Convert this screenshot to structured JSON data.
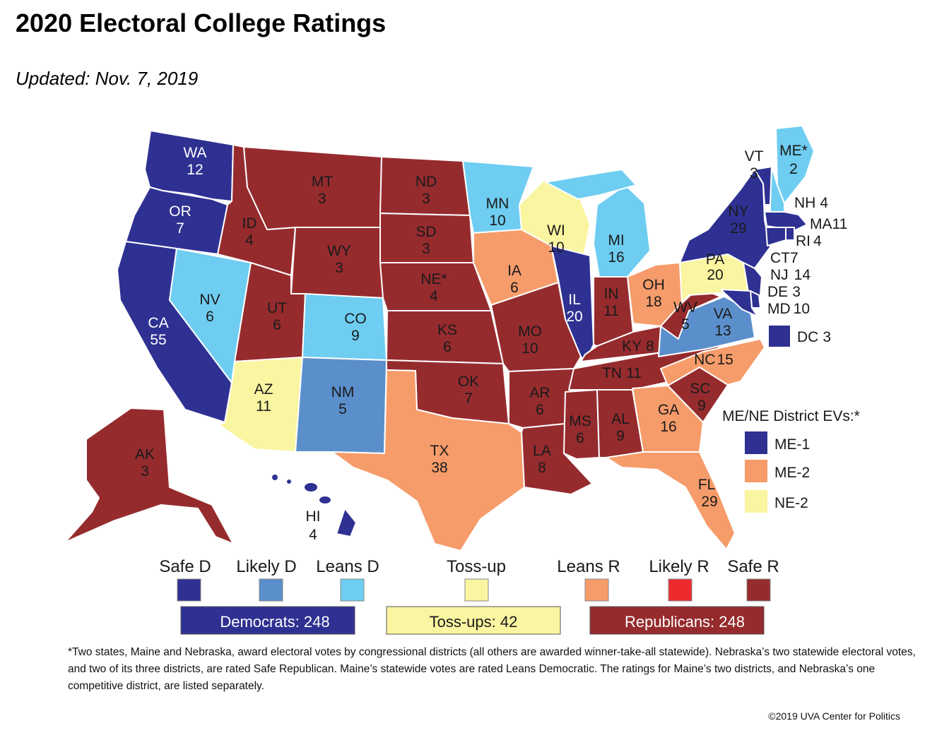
{
  "header": {
    "title": "2020 Electoral College Ratings",
    "updated": "Updated: Nov. 7, 2019"
  },
  "colors": {
    "safe_d": "#2E3192",
    "likely_d": "#5B8FCB",
    "leans_d": "#6ECDF1",
    "toss_up": "#FAF5A0",
    "leans_r": "#F69C6A",
    "likely_r": "#ED2B2F",
    "safe_r": "#962B2E"
  },
  "states": [
    {
      "abbr": "WA",
      "ev": "12",
      "rating": "safe_d"
    },
    {
      "abbr": "OR",
      "ev": "7",
      "rating": "safe_d"
    },
    {
      "abbr": "CA",
      "ev": "55",
      "rating": "safe_d"
    },
    {
      "abbr": "NV",
      "ev": "6",
      "rating": "leans_d"
    },
    {
      "abbr": "ID",
      "ev": "4",
      "rating": "safe_r"
    },
    {
      "abbr": "MT",
      "ev": "3",
      "rating": "safe_r"
    },
    {
      "abbr": "WY",
      "ev": "3",
      "rating": "safe_r"
    },
    {
      "abbr": "UT",
      "ev": "6",
      "rating": "safe_r"
    },
    {
      "abbr": "CO",
      "ev": "9",
      "rating": "leans_d"
    },
    {
      "abbr": "AZ",
      "ev": "11",
      "rating": "toss_up"
    },
    {
      "abbr": "NM",
      "ev": "5",
      "rating": "likely_d"
    },
    {
      "abbr": "ND",
      "ev": "3",
      "rating": "safe_r"
    },
    {
      "abbr": "SD",
      "ev": "3",
      "rating": "safe_r"
    },
    {
      "abbr": "NE*",
      "ev": "4",
      "rating": "safe_r"
    },
    {
      "abbr": "KS",
      "ev": "6",
      "rating": "safe_r"
    },
    {
      "abbr": "OK",
      "ev": "7",
      "rating": "safe_r"
    },
    {
      "abbr": "TX",
      "ev": "38",
      "rating": "leans_r"
    },
    {
      "abbr": "MN",
      "ev": "10",
      "rating": "leans_d"
    },
    {
      "abbr": "IA",
      "ev": "6",
      "rating": "leans_r"
    },
    {
      "abbr": "MO",
      "ev": "10",
      "rating": "safe_r"
    },
    {
      "abbr": "AR",
      "ev": "6",
      "rating": "safe_r"
    },
    {
      "abbr": "LA",
      "ev": "8",
      "rating": "safe_r"
    },
    {
      "abbr": "WI",
      "ev": "10",
      "rating": "toss_up"
    },
    {
      "abbr": "IL",
      "ev": "20",
      "rating": "safe_d"
    },
    {
      "abbr": "MI",
      "ev": "16",
      "rating": "leans_d"
    },
    {
      "abbr": "IN",
      "ev": "11",
      "rating": "safe_r"
    },
    {
      "abbr": "OH",
      "ev": "18",
      "rating": "leans_r"
    },
    {
      "abbr": "KY",
      "ev": "8",
      "rating": "safe_r"
    },
    {
      "abbr": "TN",
      "ev": "11",
      "rating": "safe_r"
    },
    {
      "abbr": "MS",
      "ev": "6",
      "rating": "safe_r"
    },
    {
      "abbr": "AL",
      "ev": "9",
      "rating": "safe_r"
    },
    {
      "abbr": "GA",
      "ev": "16",
      "rating": "leans_r"
    },
    {
      "abbr": "FL",
      "ev": "29",
      "rating": "leans_r"
    },
    {
      "abbr": "SC",
      "ev": "9",
      "rating": "safe_r"
    },
    {
      "abbr": "NC",
      "ev": "15",
      "rating": "leans_r"
    },
    {
      "abbr": "VA",
      "ev": "13",
      "rating": "likely_d"
    },
    {
      "abbr": "WV",
      "ev": "5",
      "rating": "safe_r"
    },
    {
      "abbr": "PA",
      "ev": "20",
      "rating": "toss_up"
    },
    {
      "abbr": "NY",
      "ev": "29",
      "rating": "safe_d"
    },
    {
      "abbr": "VT",
      "ev": "3",
      "rating": "safe_d"
    },
    {
      "abbr": "ME*",
      "ev": "2",
      "rating": "leans_d"
    },
    {
      "abbr": "NH",
      "ev": "4",
      "rating": "leans_d"
    },
    {
      "abbr": "MA",
      "ev": "11",
      "rating": "safe_d"
    },
    {
      "abbr": "RI",
      "ev": "4",
      "rating": "safe_d"
    },
    {
      "abbr": "CT",
      "ev": "7",
      "rating": "safe_d"
    },
    {
      "abbr": "NJ",
      "ev": "14",
      "rating": "safe_d"
    },
    {
      "abbr": "DE",
      "ev": "3",
      "rating": "safe_d"
    },
    {
      "abbr": "MD",
      "ev": "10",
      "rating": "safe_d"
    },
    {
      "abbr": "DC",
      "ev": "3",
      "rating": "safe_d"
    },
    {
      "abbr": "AK",
      "ev": "3",
      "rating": "safe_r"
    },
    {
      "abbr": "HI",
      "ev": "4",
      "rating": "safe_d"
    }
  ],
  "district_legend": {
    "title": "ME/NE District EVs:*",
    "items": [
      {
        "label": "ME-1",
        "rating": "safe_d"
      },
      {
        "label": "ME-2",
        "rating": "leans_r"
      },
      {
        "label": "NE-2",
        "rating": "toss_up"
      }
    ]
  },
  "key": [
    {
      "label": "Safe D",
      "rating": "safe_d"
    },
    {
      "label": "Likely D",
      "rating": "likely_d"
    },
    {
      "label": "Leans D",
      "rating": "leans_d"
    },
    {
      "label": "Toss-up",
      "rating": "toss_up"
    },
    {
      "label": "Leans R",
      "rating": "leans_r"
    },
    {
      "label": "Likely R",
      "rating": "likely_r"
    },
    {
      "label": "Safe R",
      "rating": "safe_r"
    }
  ],
  "totals": {
    "democrats": "Democrats: 248",
    "tossups": "Toss-ups: 42",
    "republicans": "Republicans: 248"
  },
  "footnote": "*Two states, Maine and Nebraska, award electoral votes by congressional districts (all others are awarded winner-take-all statewide). Nebraska’s two statewide electoral votes, and two of its three districts, are rated Safe Republican. Maine’s statewide votes are rated Leans Democratic. The ratings for Maine’s two districts, and Nebraska’s one competitive district, are listed separately.",
  "credit": "©2019 UVA Center for Politics"
}
